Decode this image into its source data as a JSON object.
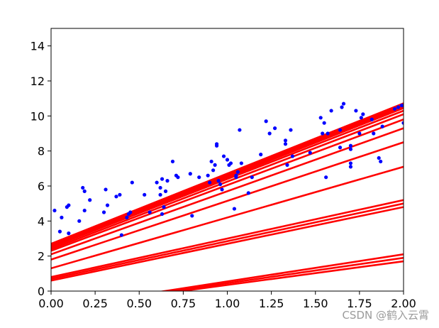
{
  "chart_data": {
    "type": "scatter",
    "title": "",
    "xlabel": "",
    "ylabel": "",
    "xlim": [
      0,
      2
    ],
    "ylim": [
      0,
      15
    ],
    "xticks": [
      0.0,
      0.25,
      0.5,
      0.75,
      1.0,
      1.25,
      1.5,
      1.75,
      2.0
    ],
    "yticks": [
      0,
      2,
      4,
      6,
      8,
      10,
      12,
      14
    ],
    "xtick_labels": [
      "0.00",
      "0.25",
      "0.50",
      "0.75",
      "1.00",
      "1.25",
      "1.50",
      "1.75",
      "2.00"
    ],
    "ytick_labels": [
      "0",
      "2",
      "4",
      "6",
      "8",
      "10",
      "12",
      "14"
    ],
    "grid": false,
    "legend": "none",
    "colors": {
      "points": "#0000ff",
      "lines": "#ff0000",
      "axes": "#000000"
    },
    "points": [
      [
        0.02,
        4.6
      ],
      [
        0.05,
        3.4
      ],
      [
        0.06,
        4.2
      ],
      [
        0.09,
        4.8
      ],
      [
        0.1,
        4.9
      ],
      [
        0.1,
        3.3
      ],
      [
        0.16,
        4.0
      ],
      [
        0.18,
        5.9
      ],
      [
        0.19,
        5.7
      ],
      [
        0.19,
        4.6
      ],
      [
        0.22,
        5.2
      ],
      [
        0.3,
        4.5
      ],
      [
        0.31,
        5.8
      ],
      [
        0.32,
        4.9
      ],
      [
        0.37,
        5.4
      ],
      [
        0.39,
        5.5
      ],
      [
        0.4,
        3.2
      ],
      [
        0.43,
        4.2
      ],
      [
        0.44,
        4.4
      ],
      [
        0.45,
        4.5
      ],
      [
        0.46,
        6.2
      ],
      [
        0.53,
        5.5
      ],
      [
        0.56,
        4.5
      ],
      [
        0.6,
        6.2
      ],
      [
        0.62,
        5.5
      ],
      [
        0.62,
        5.9
      ],
      [
        0.63,
        6.4
      ],
      [
        0.63,
        4.4
      ],
      [
        0.64,
        4.8
      ],
      [
        0.65,
        5.7
      ],
      [
        0.66,
        6.3
      ],
      [
        0.69,
        7.4
      ],
      [
        0.71,
        6.6
      ],
      [
        0.72,
        6.5
      ],
      [
        0.79,
        6.7
      ],
      [
        0.8,
        4.3
      ],
      [
        0.84,
        6.5
      ],
      [
        0.89,
        6.6
      ],
      [
        0.9,
        6.2
      ],
      [
        0.91,
        7.4
      ],
      [
        0.92,
        6.9
      ],
      [
        0.93,
        7.2
      ],
      [
        0.94,
        8.4
      ],
      [
        0.94,
        8.3
      ],
      [
        0.95,
        6.3
      ],
      [
        0.96,
        6.1
      ],
      [
        0.97,
        5.8
      ],
      [
        0.98,
        7.7
      ],
      [
        1.0,
        7.5
      ],
      [
        1.01,
        7.2
      ],
      [
        1.02,
        7.3
      ],
      [
        1.04,
        4.7
      ],
      [
        1.05,
        6.6
      ],
      [
        1.05,
        6.5
      ],
      [
        1.06,
        6.8
      ],
      [
        1.07,
        9.2
      ],
      [
        1.08,
        7.3
      ],
      [
        1.12,
        5.6
      ],
      [
        1.14,
        6.5
      ],
      [
        1.19,
        7.8
      ],
      [
        1.22,
        9.7
      ],
      [
        1.24,
        9.0
      ],
      [
        1.27,
        9.3
      ],
      [
        1.33,
        8.6
      ],
      [
        1.33,
        8.4
      ],
      [
        1.34,
        7.2
      ],
      [
        1.36,
        9.2
      ],
      [
        1.37,
        7.7
      ],
      [
        1.47,
        7.9
      ],
      [
        1.53,
        9.9
      ],
      [
        1.54,
        9.0
      ],
      [
        1.55,
        9.6
      ],
      [
        1.56,
        6.5
      ],
      [
        1.57,
        9.0
      ],
      [
        1.59,
        10.3
      ],
      [
        1.64,
        9.2
      ],
      [
        1.64,
        8.2
      ],
      [
        1.65,
        10.5
      ],
      [
        1.66,
        10.7
      ],
      [
        1.7,
        7.3
      ],
      [
        1.7,
        7.1
      ],
      [
        1.7,
        8.1
      ],
      [
        1.7,
        8.3
      ],
      [
        1.73,
        10.3
      ],
      [
        1.75,
        9.0
      ],
      [
        1.76,
        9.9
      ],
      [
        1.77,
        10.1
      ],
      [
        1.82,
        9.8
      ],
      [
        1.83,
        9.0
      ],
      [
        1.86,
        7.6
      ],
      [
        1.87,
        7.4
      ],
      [
        1.88,
        9.4
      ],
      [
        1.95,
        10.4
      ],
      [
        1.97,
        10.5
      ],
      [
        1.99,
        10.6
      ],
      [
        2.0,
        9.6
      ]
    ],
    "lines": [
      {
        "y0": -1.0,
        "y1": 1.7
      },
      {
        "y0": -1.0,
        "y1": 1.9
      },
      {
        "y0": -1.0,
        "y1": 2.1
      },
      {
        "y0": 0.6,
        "y1": 4.8
      },
      {
        "y0": 0.7,
        "y1": 5.0
      },
      {
        "y0": 0.8,
        "y1": 5.2
      },
      {
        "y0": 1.3,
        "y1": 7.1
      },
      {
        "y0": 1.8,
        "y1": 8.5
      },
      {
        "y0": 2.1,
        "y1": 9.3
      },
      {
        "y0": 2.3,
        "y1": 9.8
      },
      {
        "y0": 2.4,
        "y1": 10.1
      },
      {
        "y0": 2.5,
        "y1": 10.3
      },
      {
        "y0": 2.55,
        "y1": 10.45
      },
      {
        "y0": 2.6,
        "y1": 10.55
      },
      {
        "y0": 2.65,
        "y1": 10.65
      },
      {
        "y0": 2.7,
        "y1": 10.72
      }
    ]
  },
  "watermark": "CSDN @鹤入云霄"
}
